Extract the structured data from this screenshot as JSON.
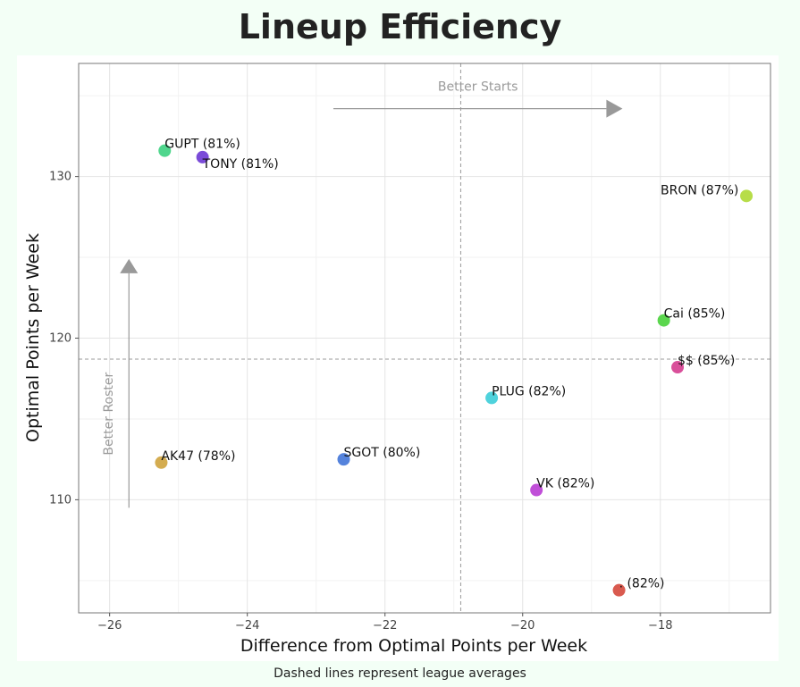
{
  "title": "Lineup Efficiency",
  "caption": "Dashed lines represent league averages",
  "chart_data": {
    "type": "scatter",
    "title": "Lineup Efficiency",
    "xlabel": "Difference from Optimal Points per Week",
    "ylabel": "Optimal Points per Week",
    "xlim": [
      -26.45,
      -16.4
    ],
    "ylim": [
      103,
      137
    ],
    "x_ticks": [
      -26,
      -24,
      -22,
      -20,
      -18
    ],
    "y_ticks": [
      110,
      120,
      130
    ],
    "x_tick_labels": [
      "−26",
      "−24",
      "−22",
      "−20",
      "−18"
    ],
    "y_tick_labels": [
      "110",
      "120",
      "130"
    ],
    "grid": true,
    "reference_lines": {
      "x": -20.9,
      "y": 118.7
    },
    "annotations": {
      "x_arrow_label": "Better Starts",
      "y_arrow_label": "Better Roster"
    },
    "points": [
      {
        "label": "GUPT (81%)",
        "x": -25.2,
        "y": 131.6,
        "color": "#4fd68d"
      },
      {
        "label": "TONY (81%)",
        "x": -24.65,
        "y": 131.2,
        "color": "#7a4bd8"
      },
      {
        "label": "BRON (87%)",
        "x": -16.75,
        "y": 128.8,
        "color": "#b7dd49"
      },
      {
        "label": "Cai (85%)",
        "x": -17.95,
        "y": 121.1,
        "color": "#5bd64e"
      },
      {
        "label": "$$ (85%)",
        "x": -17.75,
        "y": 118.2,
        "color": "#d94f9a"
      },
      {
        "label": "PLUG (82%)",
        "x": -20.45,
        "y": 116.3,
        "color": "#4fd2dc"
      },
      {
        "label": "SGOT (80%)",
        "x": -22.6,
        "y": 112.5,
        "color": "#5583dc"
      },
      {
        "label": "AK47 (78%)",
        "x": -25.25,
        "y": 112.3,
        "color": "#d4ac50"
      },
      {
        "label": "VK (82%)",
        "x": -19.8,
        "y": 110.6,
        "color": "#c04fd8"
      },
      {
        "label": ". (82%)",
        "x": -18.6,
        "y": 104.4,
        "color": "#d95a4f"
      }
    ]
  }
}
